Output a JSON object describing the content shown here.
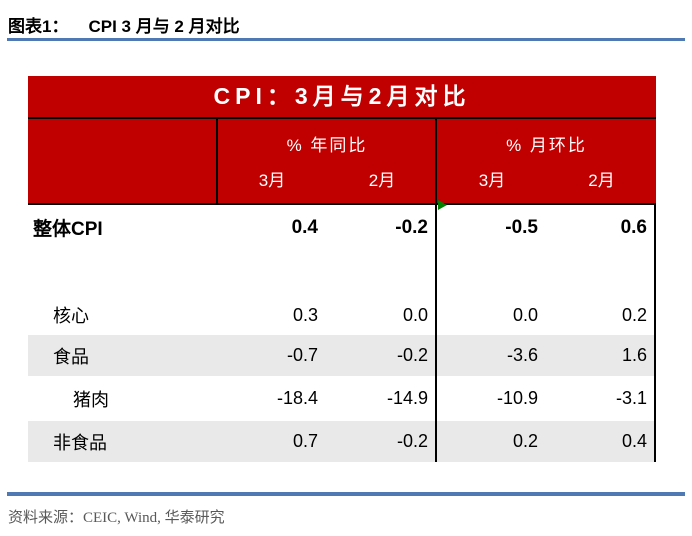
{
  "figure": {
    "label": "图表1：",
    "title": "CPI 3 月与 2 月对比"
  },
  "table": {
    "banner": "CPI：3月与2月对比",
    "col_groups": [
      {
        "label": "% 年同比",
        "months": [
          "3月",
          "2月"
        ]
      },
      {
        "label": "% 月环比",
        "months": [
          "3月",
          "2月"
        ]
      }
    ],
    "rows": [
      {
        "label": "整体CPI",
        "values": [
          "0.4",
          "-0.2",
          "-0.5",
          "0.6"
        ]
      },
      {
        "label": "核心",
        "values": [
          "0.3",
          "0.0",
          "0.0",
          "0.2"
        ]
      },
      {
        "label": "食品",
        "values": [
          "-0.7",
          "-0.2",
          "-3.6",
          "1.6"
        ]
      },
      {
        "label": "猪肉",
        "values": [
          "-18.4",
          "-14.9",
          "-10.9",
          "-3.1"
        ]
      },
      {
        "label": "非食品",
        "values": [
          "0.7",
          "-0.2",
          "0.2",
          "0.4"
        ]
      }
    ]
  },
  "footer": {
    "source": "资料来源：CEIC, Wind, 华泰研究"
  },
  "colors": {
    "banner_red": "#C00000",
    "stripe_gray": "#E9E9E9",
    "rule_blue": "#4E79B2",
    "source_text_gray": "#595959",
    "marker_green": "#008000"
  },
  "chart_data": {
    "type": "table",
    "title": "CPI：3月与2月对比",
    "column_groups": [
      "% 年同比",
      "% 月环比"
    ],
    "columns": [
      "年同比 3月",
      "年同比 2月",
      "月环比 3月",
      "月环比 2月"
    ],
    "rows": [
      {
        "label": "整体CPI",
        "values": [
          0.4,
          -0.2,
          -0.5,
          0.6
        ]
      },
      {
        "label": "核心",
        "values": [
          0.3,
          0.0,
          0.0,
          0.2
        ]
      },
      {
        "label": "食品",
        "values": [
          -0.7,
          -0.2,
          -3.6,
          1.6
        ]
      },
      {
        "label": "猪肉",
        "values": [
          -18.4,
          -14.9,
          -10.9,
          -3.1
        ]
      },
      {
        "label": "非食品",
        "values": [
          0.7,
          -0.2,
          0.2,
          0.4
        ]
      }
    ],
    "units": "%"
  }
}
